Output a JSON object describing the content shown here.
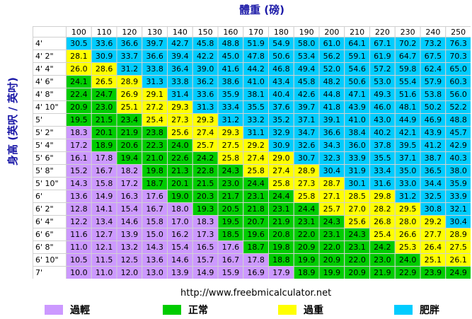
{
  "chart_data": {
    "type": "table",
    "xlabel": "體重 (磅)",
    "ylabel": "身高 (英呎 / 英吋)",
    "x": [
      "100",
      "110",
      "120",
      "130",
      "140",
      "150",
      "160",
      "170",
      "180",
      "190",
      "200",
      "210",
      "220",
      "230",
      "240",
      "250"
    ],
    "y": [
      "4'",
      "4' 2\"",
      "4' 4\"",
      "4' 6\"",
      "4' 8\"",
      "4' 10\"",
      "5'",
      "5' 2\"",
      "5' 4\"",
      "5' 6\"",
      "5' 8\"",
      "5' 10\"",
      "6'",
      "6' 2\"",
      "6' 4\"",
      "6' 6\"",
      "6' 8\"",
      "6' 10\"",
      "7'"
    ],
    "values": [
      [
        "30.5",
        "33.6",
        "36.6",
        "39.7",
        "42.7",
        "45.8",
        "48.8",
        "51.9",
        "54.9",
        "58.0",
        "61.0",
        "64.1",
        "67.1",
        "70.2",
        "73.2",
        "76.3"
      ],
      [
        "28.1",
        "30.9",
        "33.7",
        "36.6",
        "39.4",
        "42.2",
        "45.0",
        "47.8",
        "50.6",
        "53.4",
        "56.2",
        "59.1",
        "61.9",
        "64.7",
        "67.5",
        "70.3"
      ],
      [
        "26.0",
        "28.6",
        "31.2",
        "33.8",
        "36.4",
        "39.0",
        "41.6",
        "44.2",
        "46.8",
        "49.4",
        "52.0",
        "54.6",
        "57.2",
        "59.8",
        "62.4",
        "65.0"
      ],
      [
        "24.1",
        "26.5",
        "28.9",
        "31.3",
        "33.8",
        "36.2",
        "38.6",
        "41.0",
        "43.4",
        "45.8",
        "48.2",
        "50.6",
        "53.0",
        "55.4",
        "57.9",
        "60.3"
      ],
      [
        "22.4",
        "24.7",
        "26.9",
        "29.1",
        "31.4",
        "33.6",
        "35.9",
        "38.1",
        "40.4",
        "42.6",
        "44.8",
        "47.1",
        "49.3",
        "51.6",
        "53.8",
        "56.0"
      ],
      [
        "20.9",
        "23.0",
        "25.1",
        "27.2",
        "29.3",
        "31.3",
        "33.4",
        "35.5",
        "37.6",
        "39.7",
        "41.8",
        "43.9",
        "46.0",
        "48.1",
        "50.2",
        "52.2"
      ],
      [
        "19.5",
        "21.5",
        "23.4",
        "25.4",
        "27.3",
        "29.3",
        "31.2",
        "33.2",
        "35.2",
        "37.1",
        "39.1",
        "41.0",
        "43.0",
        "44.9",
        "46.9",
        "48.8"
      ],
      [
        "18.3",
        "20.1",
        "21.9",
        "23.8",
        "25.6",
        "27.4",
        "29.3",
        "31.1",
        "32.9",
        "34.7",
        "36.6",
        "38.4",
        "40.2",
        "42.1",
        "43.9",
        "45.7"
      ],
      [
        "17.2",
        "18.9",
        "20.6",
        "22.3",
        "24.0",
        "25.7",
        "27.5",
        "29.2",
        "30.9",
        "32.6",
        "34.3",
        "36.0",
        "37.8",
        "39.5",
        "41.2",
        "42.9"
      ],
      [
        "16.1",
        "17.8",
        "19.4",
        "21.0",
        "22.6",
        "24.2",
        "25.8",
        "27.4",
        "29.0",
        "30.7",
        "32.3",
        "33.9",
        "35.5",
        "37.1",
        "38.7",
        "40.3"
      ],
      [
        "15.2",
        "16.7",
        "18.2",
        "19.8",
        "21.3",
        "22.8",
        "24.3",
        "25.8",
        "27.4",
        "28.9",
        "30.4",
        "31.9",
        "33.4",
        "35.0",
        "36.5",
        "38.0"
      ],
      [
        "14.3",
        "15.8",
        "17.2",
        "18.7",
        "20.1",
        "21.5",
        "23.0",
        "24.4",
        "25.8",
        "27.3",
        "28.7",
        "30.1",
        "31.6",
        "33.0",
        "34.4",
        "35.9"
      ],
      [
        "13.6",
        "14.9",
        "16.3",
        "17.6",
        "19.0",
        "20.3",
        "21.7",
        "23.1",
        "24.4",
        "25.8",
        "27.1",
        "28.5",
        "29.8",
        "31.2",
        "32.5",
        "33.9"
      ],
      [
        "12.8",
        "14.1",
        "15.4",
        "16.7",
        "18.0",
        "19.3",
        "20.5",
        "21.8",
        "23.1",
        "24.4",
        "25.7",
        "27.0",
        "28.2",
        "29.5",
        "30.8",
        "32.1"
      ],
      [
        "12.2",
        "13.4",
        "14.6",
        "15.8",
        "17.0",
        "18.3",
        "19.5",
        "20.7",
        "21.9",
        "23.1",
        "24.3",
        "25.6",
        "26.8",
        "28.0",
        "29.2",
        "30.4"
      ],
      [
        "11.6",
        "12.7",
        "13.9",
        "15.0",
        "16.2",
        "17.3",
        "18.5",
        "19.6",
        "20.8",
        "22.0",
        "23.1",
        "24.3",
        "25.4",
        "26.6",
        "27.7",
        "28.9"
      ],
      [
        "11.0",
        "12.1",
        "13.2",
        "14.3",
        "15.4",
        "16.5",
        "17.6",
        "18.7",
        "19.8",
        "20.9",
        "22.0",
        "23.1",
        "24.2",
        "25.3",
        "26.4",
        "27.5"
      ],
      [
        "10.5",
        "11.5",
        "12.5",
        "13.6",
        "14.6",
        "15.7",
        "16.7",
        "17.8",
        "18.8",
        "19.9",
        "20.9",
        "22.0",
        "23.0",
        "24.0",
        "25.1",
        "26.1"
      ],
      [
        "10.0",
        "11.0",
        "12.0",
        "13.0",
        "13.9",
        "14.9",
        "15.9",
        "16.9",
        "17.9",
        "18.9",
        "19.9",
        "20.9",
        "21.9",
        "22.9",
        "23.9",
        "24.9"
      ]
    ],
    "thresholds": [
      18.5,
      25,
      30
    ],
    "categories": [
      {
        "label": "過輕",
        "color": "#cc99ff"
      },
      {
        "label": "正常",
        "color": "#00cc00"
      },
      {
        "label": "過重",
        "color": "#ffff00"
      },
      {
        "label": "肥胖",
        "color": "#00ccff"
      }
    ],
    "legend_position": "bottom",
    "grid": true
  },
  "footer": {
    "url": "http://www.freebmicalculator.net"
  }
}
